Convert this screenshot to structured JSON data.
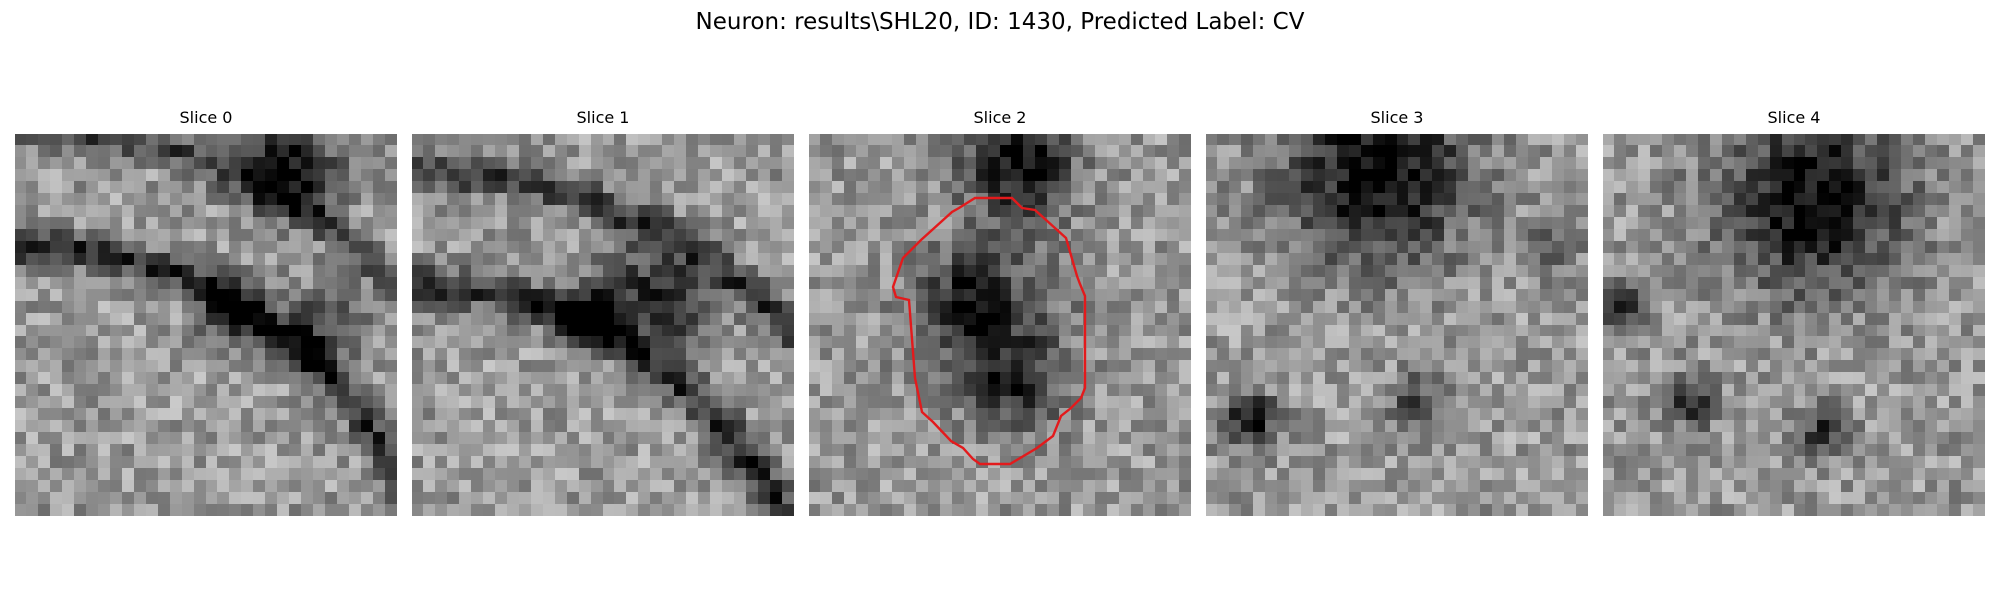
{
  "figure": {
    "title": "Neuron: results\\SHL20, ID: 1430, Predicted Label: CV"
  },
  "panels": [
    {
      "title": "Slice 0"
    },
    {
      "title": "Slice 1"
    },
    {
      "title": "Slice 2"
    },
    {
      "title": "Slice 3"
    },
    {
      "title": "Slice 4"
    }
  ],
  "colors": {
    "outline": "#e31a1c",
    "background": "#ffffff"
  }
}
